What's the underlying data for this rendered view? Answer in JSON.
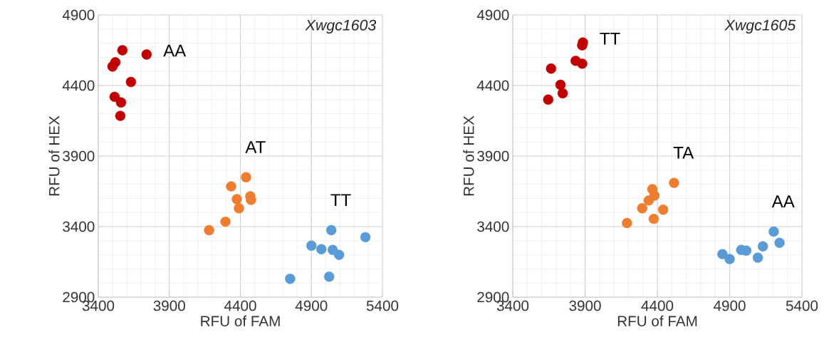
{
  "chart_data": [
    {
      "type": "scatter",
      "title": "Xwgc1603",
      "xlabel": "RFU of FAM",
      "ylabel": "RFU of HEX",
      "xlim": [
        3400,
        5400
      ],
      "ylim": [
        2900,
        4900
      ],
      "xticks": [
        3400,
        3900,
        4400,
        4900,
        5400
      ],
      "yticks": [
        2900,
        3400,
        3900,
        4400,
        4900
      ],
      "grid": true,
      "marker": "circle",
      "series": [
        {
          "name": "AA",
          "color": "#c00000",
          "x": [
            3570,
            3740,
            3520,
            3500,
            3630,
            3515,
            3560,
            3555
          ],
          "values": [
            4650,
            4620,
            4565,
            4535,
            4425,
            4320,
            4280,
            4185
          ]
        },
        {
          "name": "AT",
          "color": "#ed7d31",
          "x": [
            4440,
            4335,
            4375,
            4470,
            4475,
            4390,
            4295,
            4180
          ],
          "values": [
            3750,
            3685,
            3595,
            3615,
            3590,
            3530,
            3435,
            3375
          ]
        },
        {
          "name": "TT",
          "color": "#5b9bd5",
          "x": [
            5040,
            5280,
            4900,
            4970,
            5050,
            5095,
            4750,
            5025
          ],
          "values": [
            3375,
            3325,
            3265,
            3240,
            3235,
            3200,
            3030,
            3045
          ]
        }
      ]
    },
    {
      "type": "scatter",
      "title": "Xwgc1605",
      "xlabel": "RFU of FAM",
      "ylabel": "RFU of HEX",
      "xlim": [
        3400,
        5400
      ],
      "ylim": [
        2900,
        4900
      ],
      "xticks": [
        3400,
        3900,
        4400,
        4900,
        5400
      ],
      "yticks": [
        2900,
        3400,
        3900,
        4400,
        4900
      ],
      "grid": true,
      "marker": "circle",
      "series": [
        {
          "name": "TT",
          "color": "#c00000",
          "x": [
            3885,
            3880,
            3835,
            3880,
            3665,
            3730,
            3745,
            3645
          ],
          "values": [
            4705,
            4685,
            4575,
            4555,
            4520,
            4405,
            4345,
            4300
          ]
        },
        {
          "name": "TA",
          "color": "#ed7d31",
          "x": [
            4515,
            4365,
            4380,
            4340,
            4295,
            4440,
            4375,
            4190
          ],
          "values": [
            3710,
            3665,
            3620,
            3585,
            3530,
            3520,
            3455,
            3425
          ]
        },
        {
          "name": "AA",
          "color": "#5b9bd5",
          "x": [
            5205,
            5245,
            4850,
            4900,
            4980,
            5015,
            5095,
            5130
          ],
          "values": [
            3365,
            3285,
            3205,
            3170,
            3235,
            3230,
            3180,
            3260
          ]
        }
      ]
    }
  ]
}
